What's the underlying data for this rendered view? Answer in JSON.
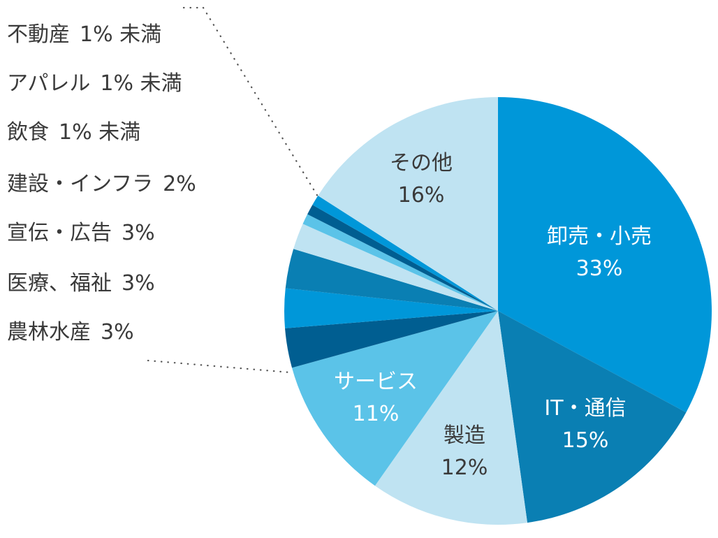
{
  "chart_data": {
    "type": "pie",
    "slices": [
      {
        "label": "卸売・小売",
        "value_text": "33%",
        "value": 33,
        "color": "#0097d9"
      },
      {
        "label": "IT・通信",
        "value_text": "15%",
        "value": 15,
        "color": "#0a7fb3"
      },
      {
        "label": "製造",
        "value_text": "12%",
        "value": 12,
        "color": "#bfe3f2"
      },
      {
        "label": "サービス",
        "value_text": "11%",
        "value": 11,
        "color": "#5bc3e8"
      },
      {
        "label": "農林水産",
        "value_text": "3%",
        "value": 3,
        "color": "#005e91"
      },
      {
        "label": "医療、福祉",
        "value_text": "3%",
        "value": 3,
        "color": "#0097d9"
      },
      {
        "label": "宣伝・広告",
        "value_text": "3%",
        "value": 3,
        "color": "#0a7fb3"
      },
      {
        "label": "建設・インフラ",
        "value_text": "2%",
        "value": 2,
        "color": "#bfe3f2"
      },
      {
        "label": "飲食",
        "value_text": "1% 未満",
        "value": 0.8,
        "color": "#5bc3e8"
      },
      {
        "label": "アパレル",
        "value_text": "1% 未満",
        "value": 0.8,
        "color": "#005e91"
      },
      {
        "label": "不動産",
        "value_text": "1% 未満",
        "value": 0.8,
        "color": "#0097d9"
      },
      {
        "label": "その他",
        "value_text": "16%",
        "value": 16,
        "color": "#bfe3f2"
      }
    ]
  }
}
